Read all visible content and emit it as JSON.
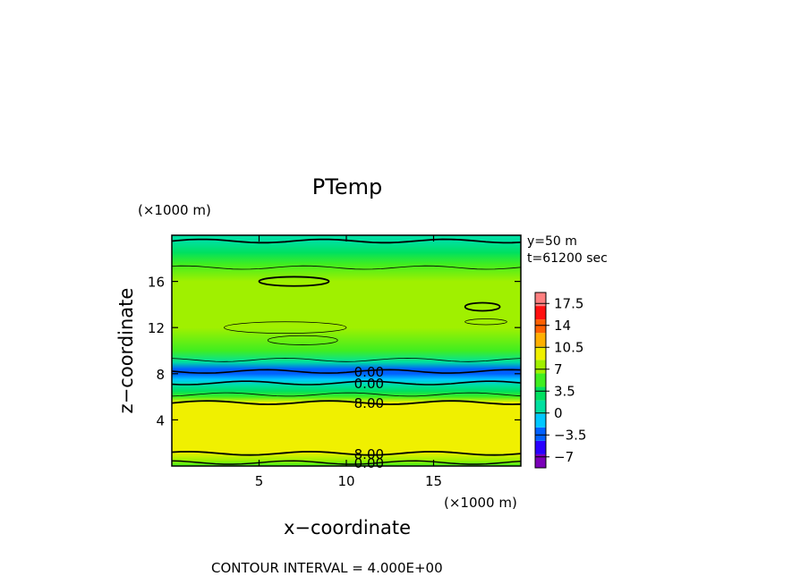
{
  "chart_data": {
    "type": "heatmap",
    "title": "PTemp",
    "xlabel": "x−coordinate",
    "ylabel": "z−coordinate",
    "x_unit": "(×1000 m)",
    "y_unit": "(×1000 m)",
    "xlim": [
      0,
      20
    ],
    "ylim": [
      0,
      20
    ],
    "x_ticks": [
      "5",
      "10",
      "15"
    ],
    "x_tick_values": [
      5,
      10,
      15
    ],
    "y_ticks": [
      "4",
      "8",
      "12",
      "16"
    ],
    "y_tick_values": [
      4,
      8,
      12,
      16
    ],
    "annotations": {
      "y_slice": "y=50 m",
      "time": "t=61200 sec"
    },
    "colorbar": {
      "tick_labels": [
        "17.5",
        "14",
        "10.5",
        "7",
        "3.5",
        "0",
        "−3.5",
        "−7"
      ],
      "tick_values": [
        17.5,
        14,
        10.5,
        7,
        3.5,
        0,
        -3.5,
        -7
      ],
      "range": [
        -8.75,
        19.25
      ],
      "colors": [
        "#7a00b8",
        "#2a00ff",
        "#0060ff",
        "#00c8ff",
        "#00e0a0",
        "#00e060",
        "#40ee20",
        "#a0f000",
        "#f0f000",
        "#ffb000",
        "#ff6000",
        "#ff1010",
        "#ff8080"
      ]
    },
    "contour_labels": [
      {
        "text": "0.00",
        "x": 11.3,
        "z": 8.2
      },
      {
        "text": "0.00",
        "x": 11.3,
        "z": 7.2
      },
      {
        "text": "8.00",
        "x": 11.3,
        "z": 5.5
      },
      {
        "text": "8.00",
        "x": 11.3,
        "z": 1.1
      },
      {
        "text": "0.00",
        "x": 11.3,
        "z": 0.3
      }
    ],
    "vertical_profile": [
      {
        "z": 0.0,
        "value": 6.0
      },
      {
        "z": 0.5,
        "value": 7.5
      },
      {
        "z": 1.2,
        "value": 8.6
      },
      {
        "z": 2.5,
        "value": 9.3
      },
      {
        "z": 4.0,
        "value": 9.6
      },
      {
        "z": 5.5,
        "value": 9.0
      },
      {
        "z": 6.0,
        "value": 6.0
      },
      {
        "z": 6.5,
        "value": 4.0
      },
      {
        "z": 7.0,
        "value": 2.0
      },
      {
        "z": 7.5,
        "value": -1.0
      },
      {
        "z": 8.0,
        "value": -3.5
      },
      {
        "z": 8.4,
        "value": -2.5
      },
      {
        "z": 9.0,
        "value": 2.0
      },
      {
        "z": 10.0,
        "value": 6.0
      },
      {
        "z": 12.0,
        "value": 7.0
      },
      {
        "z": 15.0,
        "value": 7.2
      },
      {
        "z": 16.0,
        "value": 7.5
      },
      {
        "z": 17.5,
        "value": 5.0
      },
      {
        "z": 18.5,
        "value": 2.5
      },
      {
        "z": 19.5,
        "value": 1.0
      },
      {
        "z": 20.0,
        "value": 0.5
      }
    ]
  },
  "footer": {
    "contour_interval": "CONTOUR INTERVAL = 4.000E+00"
  }
}
